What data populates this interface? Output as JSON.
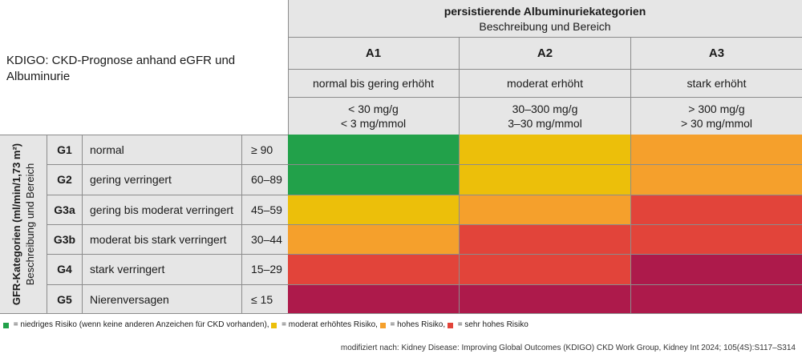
{
  "title": "KDIGO: CKD-Prognose anhand eGFR und Albuminurie",
  "column_header": {
    "title": "persistierende Albuminuriekategorien",
    "subtitle": "Beschreibung und Bereich"
  },
  "columns": [
    {
      "code": "A1",
      "description": "normal bis gering erhöht",
      "range_line1": "< 30 mg/g",
      "range_line2": "< 3 mg/mmol"
    },
    {
      "code": "A2",
      "description": "moderat erhöht",
      "range_line1": "30–300 mg/g",
      "range_line2": "3–30 mg/mmol"
    },
    {
      "code": "A3",
      "description": "stark erhöht",
      "range_line1": "> 300 mg/g",
      "range_line2": "> 30 mg/mmol"
    }
  ],
  "row_header": {
    "title": "GFR-Kategorien (ml/min/1,73 m²)",
    "subtitle": "Beschreibung und Bereich"
  },
  "rows": [
    {
      "code": "G1",
      "description": "normal",
      "range": "≥ 90"
    },
    {
      "code": "G2",
      "description": "gering verringert",
      "range": "60–89"
    },
    {
      "code": "G3a",
      "description": "gering bis moderat verringert",
      "range": "45–59"
    },
    {
      "code": "G3b",
      "description": "moderat bis stark verringert",
      "range": "30–44"
    },
    {
      "code": "G4",
      "description": "stark verringert",
      "range": "15–29"
    },
    {
      "code": "G5",
      "description": "Nierenversagen",
      "range": "≤ 15"
    }
  ],
  "risk_colors": {
    "low": "#22a14a",
    "moderate": "#ecbf0a",
    "high": "#f5a02c",
    "very_high_orange_red": "#e2443a",
    "very_high": "#ad1a4b"
  },
  "risk_matrix": [
    [
      "low",
      "moderate",
      "high"
    ],
    [
      "low",
      "moderate",
      "high"
    ],
    [
      "moderate",
      "high",
      "very_high_orange_red"
    ],
    [
      "high",
      "very_high_orange_red",
      "very_high_orange_red"
    ],
    [
      "very_high_orange_red",
      "very_high_orange_red",
      "very_high"
    ],
    [
      "very_high",
      "very_high",
      "very_high"
    ]
  ],
  "legend": [
    {
      "color": "low",
      "label": " = niedriges Risiko (wenn keine anderen Anzeichen für CKD vorhanden), "
    },
    {
      "color": "moderate",
      "label": " = moderat erhöhtes Risiko, "
    },
    {
      "color": "high",
      "label": " = hohes Risiko, "
    },
    {
      "color": "very_high_orange_red",
      "label": " = sehr hohes Risiko"
    }
  ],
  "source": "modifiziert nach: Kidney Disease: Improving Global Outcomes (KDIGO) CKD Work Group, Kidney Int 2024; 105(4S):S117–S314"
}
